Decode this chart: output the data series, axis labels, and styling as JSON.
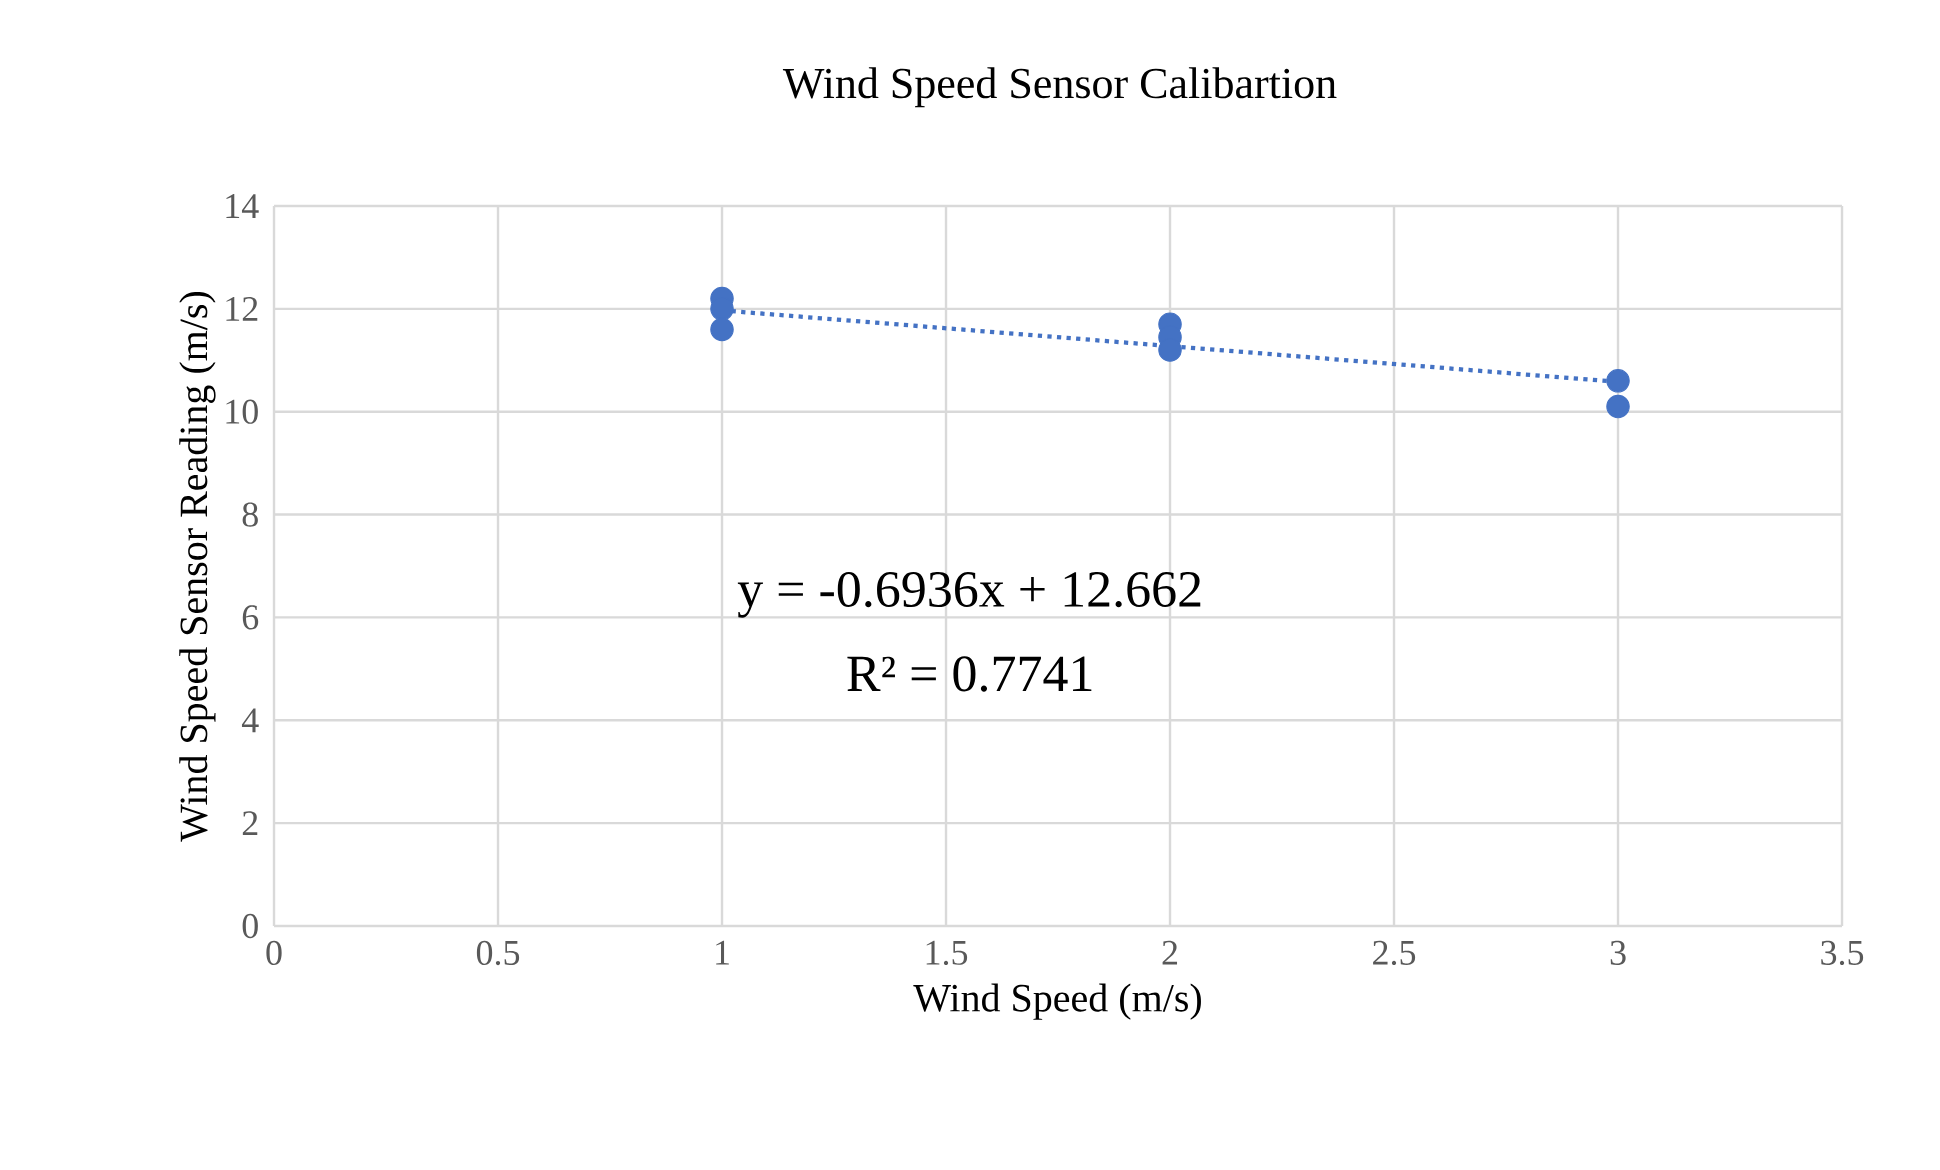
{
  "chart_data": {
    "type": "scatter",
    "title": "Wind Speed Sensor Calibartion",
    "xlabel": "Wind Speed (m/s)",
    "ylabel": "Wind Speed Sensor Reading (m/s)",
    "series": [
      {
        "color": "#4472c4",
        "marker": "circle",
        "x": [
          1,
          1,
          1,
          2,
          2,
          2,
          3,
          3
        ],
        "values": [
          12.2,
          12.0,
          11.6,
          11.7,
          11.45,
          11.2,
          10.6,
          10.1
        ]
      },
      {
        "type": "line",
        "color": "#4472c4",
        "line_style": "dotted",
        "marker": "none",
        "x": [
          1,
          3
        ],
        "values": [
          11.97,
          10.58
        ]
      }
    ],
    "annotations": [
      "y = -0.6936x + 12.662",
      "R² = 0.7741"
    ],
    "xlim": [
      0,
      3.5
    ],
    "xticks": [
      0,
      0.5,
      1,
      1.5,
      2,
      2.5,
      3,
      3.5
    ],
    "ylim": [
      0,
      14
    ],
    "yticks": [
      0,
      2,
      4,
      6,
      8,
      10,
      12,
      14
    ],
    "grid": true
  }
}
